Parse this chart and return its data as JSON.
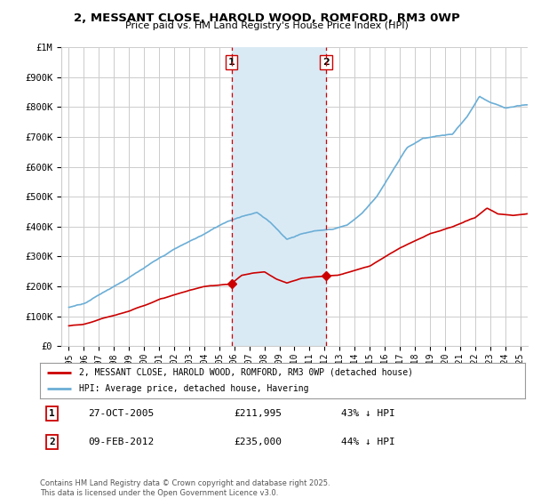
{
  "title": "2, MESSANT CLOSE, HAROLD WOOD, ROMFORD, RM3 0WP",
  "subtitle": "Price paid vs. HM Land Registry's House Price Index (HPI)",
  "ylabel_ticks": [
    "£0",
    "£100K",
    "£200K",
    "£300K",
    "£400K",
    "£500K",
    "£600K",
    "£700K",
    "£800K",
    "£900K",
    "£1M"
  ],
  "ytick_values": [
    0,
    100000,
    200000,
    300000,
    400000,
    500000,
    600000,
    700000,
    800000,
    900000,
    1000000
  ],
  "ylim": [
    0,
    1000000
  ],
  "xlim_start": 1994.5,
  "xlim_end": 2025.5,
  "xticks": [
    1995,
    1996,
    1997,
    1998,
    1999,
    2000,
    2001,
    2002,
    2003,
    2004,
    2005,
    2006,
    2007,
    2008,
    2009,
    2010,
    2011,
    2012,
    2013,
    2014,
    2015,
    2016,
    2017,
    2018,
    2019,
    2020,
    2021,
    2022,
    2023,
    2024,
    2025
  ],
  "hpi_color": "#6baed6",
  "price_color": "#cc0000",
  "vline_color": "#cc0000",
  "shade_color": "#daeaf5",
  "transaction1_date": 2005.82,
  "transaction1_price": 211995,
  "transaction2_date": 2012.09,
  "transaction2_price": 235000,
  "legend_line1": "2, MESSANT CLOSE, HAROLD WOOD, ROMFORD, RM3 0WP (detached house)",
  "legend_line2": "HPI: Average price, detached house, Havering",
  "annotation1_date": "27-OCT-2005",
  "annotation1_price": "£211,995",
  "annotation1_hpi": "43% ↓ HPI",
  "annotation2_date": "09-FEB-2012",
  "annotation2_price": "£235,000",
  "annotation2_hpi": "44% ↓ HPI",
  "footnote": "Contains HM Land Registry data © Crown copyright and database right 2025.\nThis data is licensed under the Open Government Licence v3.0.",
  "background_color": "#ffffff",
  "grid_color": "#cccccc"
}
